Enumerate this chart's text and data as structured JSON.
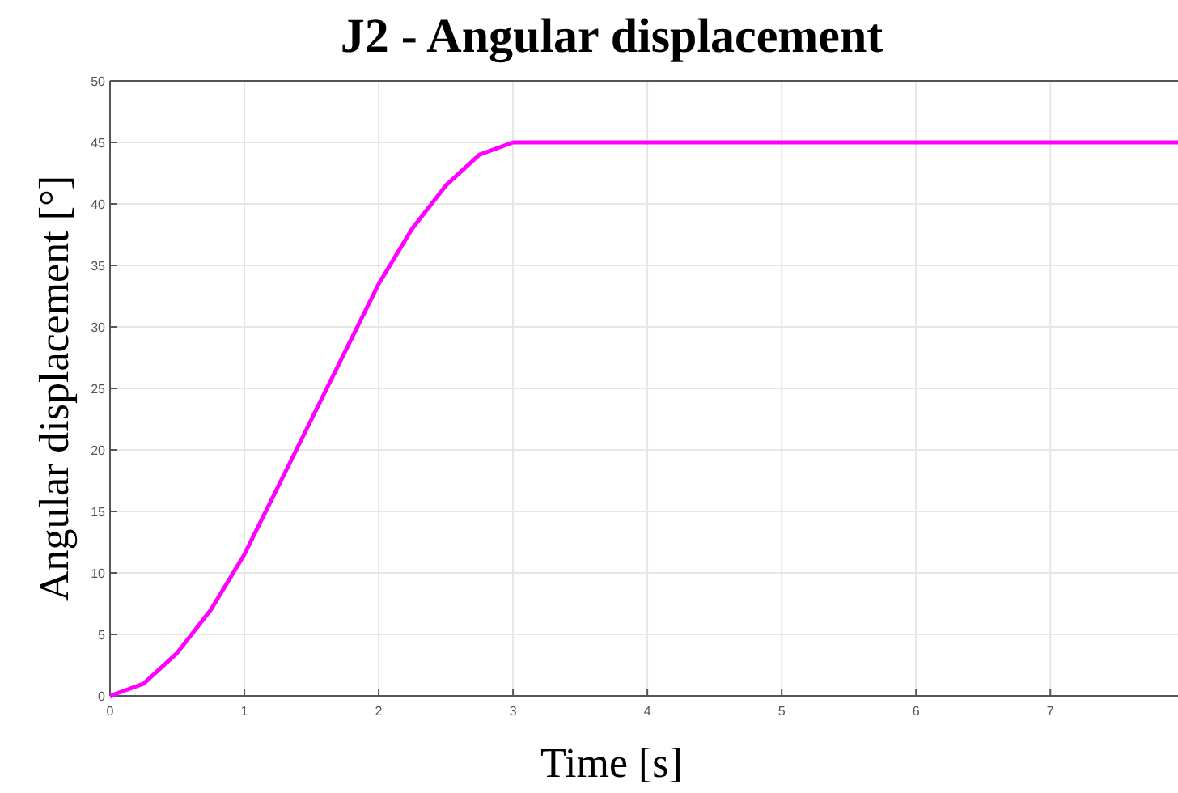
{
  "chart_data": {
    "type": "line",
    "title": "J2 - Angular displacement",
    "xlabel": "Time [s]",
    "ylabel": "Angular displacement [°]",
    "x": [
      0,
      0.25,
      0.5,
      0.75,
      1,
      1.25,
      1.5,
      1.75,
      2,
      2.25,
      2.5,
      2.75,
      3,
      5,
      7.95
    ],
    "series": [
      {
        "color": "#ff00ff",
        "values": [
          0,
          1,
          3.5,
          7,
          11.5,
          17,
          22.5,
          28,
          33.5,
          38,
          41.5,
          44,
          45,
          45,
          45
        ]
      }
    ],
    "xlim": [
      0,
      7.95
    ],
    "xticks": [
      0,
      1,
      2,
      3,
      4,
      5,
      6,
      7
    ],
    "ylim": [
      0,
      50
    ],
    "yticks": [
      0,
      5,
      10,
      15,
      20,
      25,
      30,
      35,
      40,
      45,
      50
    ],
    "grid": true,
    "marker": "none",
    "line_style": "solid"
  }
}
